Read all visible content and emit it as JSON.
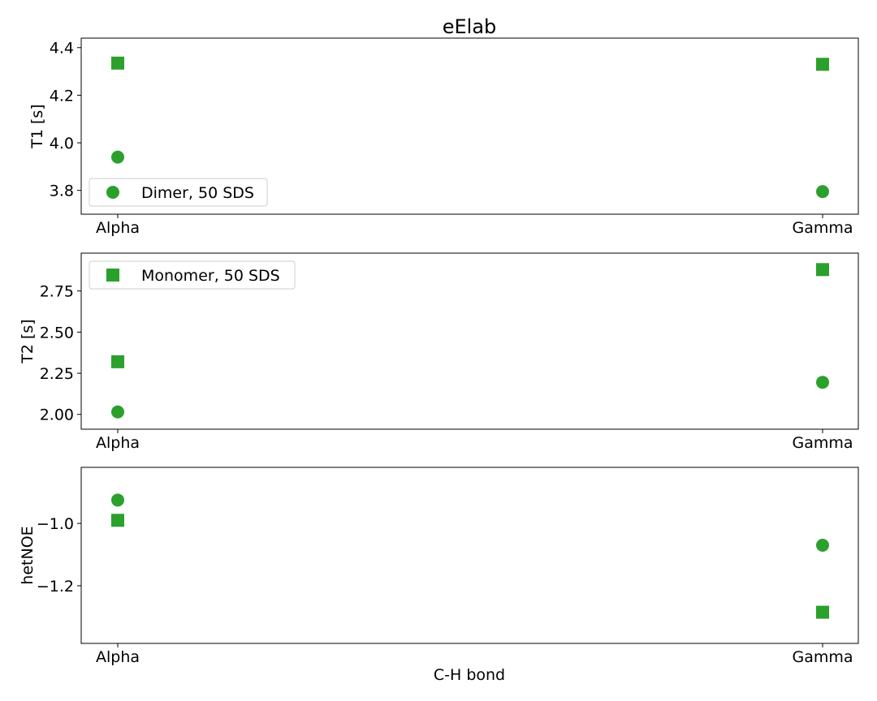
{
  "title": "eElab",
  "xlabel": "C-H bond",
  "colors": {
    "marker": "#2ca02c"
  },
  "chart_data": [
    {
      "type": "scatter",
      "categories": [
        "Alpha",
        "Gamma"
      ],
      "ylabel": "T1 [s]",
      "ylim": [
        3.7,
        4.44
      ],
      "yticks": [
        3.8,
        4.0,
        4.2,
        4.4
      ],
      "ytick_labels": [
        "3.8",
        "4.0",
        "4.2",
        "4.4"
      ],
      "legend": {
        "placement": "lower-left",
        "entries": [
          {
            "label": "Dimer, 50 SDS",
            "marker": "circle"
          }
        ]
      },
      "series": [
        {
          "marker": "circle",
          "values": [
            3.94,
            3.795
          ]
        },
        {
          "marker": "square",
          "values": [
            4.335,
            4.33
          ]
        }
      ]
    },
    {
      "type": "scatter",
      "categories": [
        "Alpha",
        "Gamma"
      ],
      "ylabel": "T2 [s]",
      "ylim": [
        1.91,
        2.98
      ],
      "yticks": [
        2.0,
        2.25,
        2.5,
        2.75
      ],
      "ytick_labels": [
        "2.00",
        "2.25",
        "2.50",
        "2.75"
      ],
      "legend": {
        "placement": "upper-left",
        "entries": [
          {
            "label": "Monomer, 50 SDS",
            "marker": "square"
          }
        ]
      },
      "series": [
        {
          "marker": "circle",
          "values": [
            2.015,
            2.195
          ]
        },
        {
          "marker": "square",
          "values": [
            2.32,
            2.88
          ]
        }
      ]
    },
    {
      "type": "scatter",
      "categories": [
        "Alpha",
        "Gamma"
      ],
      "ylabel": "hetNOE",
      "ylim": [
        -1.385,
        -0.82
      ],
      "yticks": [
        -1.2,
        -1.0
      ],
      "ytick_labels": [
        "−1.2",
        "−1.0"
      ],
      "legend": null,
      "series": [
        {
          "marker": "circle",
          "values": [
            -0.925,
            -1.07
          ]
        },
        {
          "marker": "square",
          "values": [
            -0.99,
            -1.285
          ]
        }
      ]
    }
  ]
}
